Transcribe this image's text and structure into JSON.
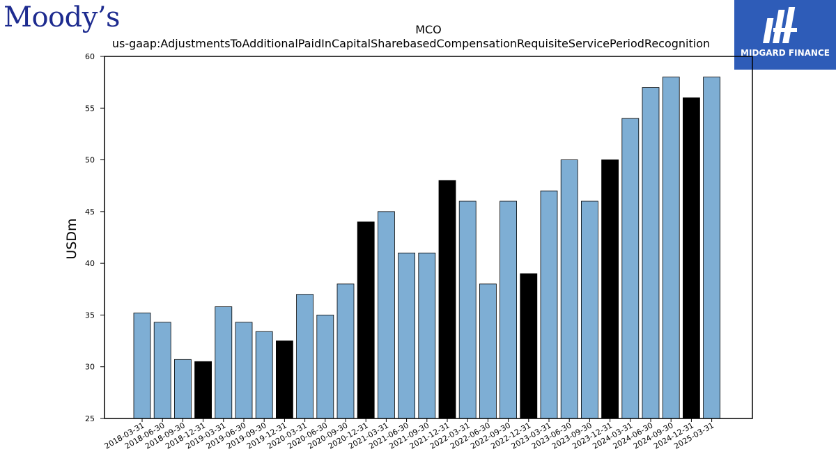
{
  "branding": {
    "logo_text": "Moody’s",
    "watermark_text": "MIDGARD FINANCE",
    "watermark_color": "#2e5cb8",
    "logo_color": "#1d2b8f"
  },
  "chart_data": {
    "type": "bar",
    "title": "MCO",
    "subtitle": "us-gaap:AdjustmentsToAdditionalPaidInCapitalSharebasedCompensationRequisiteServicePeriodRecognition",
    "xlabel": "",
    "ylabel": "USDm",
    "ylim": [
      25,
      60
    ],
    "yticks": [
      25,
      30,
      35,
      40,
      45,
      50,
      55,
      60
    ],
    "grid": false,
    "colors": {
      "quarter": "#7eaed4",
      "year_end": "#000000"
    },
    "categories": [
      "2018-03-31",
      "2018-06-30",
      "2018-09-30",
      "2018-12-31",
      "2019-03-31",
      "2019-06-30",
      "2019-09-30",
      "2019-12-31",
      "2020-03-31",
      "2020-06-30",
      "2020-09-30",
      "2020-12-31",
      "2021-03-31",
      "2021-06-30",
      "2021-09-30",
      "2021-12-31",
      "2022-03-31",
      "2022-06-30",
      "2022-09-30",
      "2022-12-31",
      "2023-03-31",
      "2023-06-30",
      "2023-09-30",
      "2023-12-31",
      "2024-03-31",
      "2024-06-30",
      "2024-09-30",
      "2024-12-31",
      "2025-03-31"
    ],
    "values": [
      35.2,
      34.3,
      30.7,
      30.5,
      35.8,
      34.3,
      33.4,
      32.5,
      37,
      35,
      38,
      44,
      45,
      41,
      41,
      48,
      46,
      38,
      46,
      39,
      47,
      50,
      46,
      50,
      54,
      57,
      58,
      56,
      58
    ]
  }
}
